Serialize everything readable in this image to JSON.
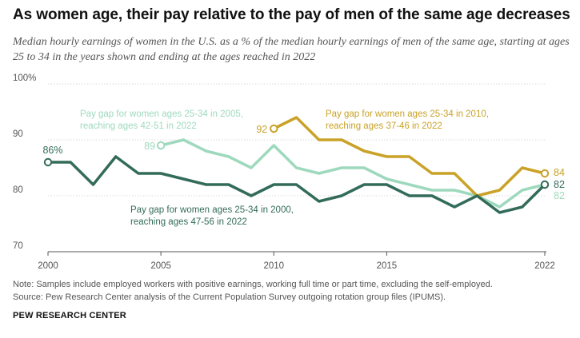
{
  "header": {
    "title": "As women age, their pay relative to the pay of men of the same age decreases",
    "subtitle": "Median hourly earnings of women in the U.S. as a % of the median hourly earnings of men of the same age, starting at ages 25 to 34 in the years shown and ending at the ages reached in 2022"
  },
  "footer": {
    "note": "Note: Samples include employed workers with positive earnings, working full time or part time, excluding the self-employed.",
    "source": "Source: Pew Research Center analysis of the Current Population Survey outgoing rotation group files (IPUMS).",
    "brand": "PEW RESEARCH CENTER"
  },
  "chart_data": {
    "type": "line",
    "xlim": [
      2000,
      2022
    ],
    "ylim": [
      70,
      100
    ],
    "x_ticks": [
      "2000",
      "2005",
      "2010",
      "2015",
      "2022"
    ],
    "y_ticks": [
      "100%",
      "90",
      "80",
      "70"
    ],
    "grid": "horizontal",
    "series": [
      {
        "id": "cohort2000",
        "label_line1": "Pay gap for women ages 25-34 in 2000,",
        "label_line2": "reaching ages 47-56 in 2022",
        "color": "#336b5a",
        "start_label": "86%",
        "end_label": "82",
        "x": [
          2000,
          2001,
          2002,
          2003,
          2004,
          2005,
          2006,
          2007,
          2008,
          2009,
          2010,
          2011,
          2012,
          2013,
          2014,
          2015,
          2016,
          2017,
          2018,
          2019,
          2020,
          2021,
          2022
        ],
        "values": [
          86,
          86,
          82,
          87,
          84,
          84,
          83,
          82,
          82,
          80,
          82,
          82,
          79,
          80,
          82,
          82,
          80,
          80,
          78,
          80,
          77,
          78,
          82
        ]
      },
      {
        "id": "cohort2005",
        "label_line1": "Pay gap for women ages 25-34 in 2005,",
        "label_line2": "reaching ages 42-51 in 2022",
        "color": "#9ed9be",
        "start_label": "89",
        "end_label": "82",
        "x": [
          2005,
          2006,
          2007,
          2008,
          2009,
          2010,
          2011,
          2012,
          2013,
          2014,
          2015,
          2016,
          2017,
          2018,
          2019,
          2020,
          2021,
          2022
        ],
        "values": [
          89,
          90,
          88,
          87,
          85,
          89,
          85,
          84,
          85,
          85,
          83,
          82,
          81,
          81,
          80,
          78,
          81,
          82
        ]
      },
      {
        "id": "cohort2010",
        "label_line1": "Pay gap for women ages 25-34 in 2010,",
        "label_line2": "reaching ages 37-46 in 2022",
        "color": "#c9a227",
        "start_label": "92",
        "end_label": "84",
        "x": [
          2010,
          2011,
          2012,
          2013,
          2014,
          2015,
          2016,
          2017,
          2018,
          2019,
          2020,
          2021,
          2022
        ],
        "values": [
          92,
          94,
          90,
          90,
          88,
          87,
          87,
          84,
          84,
          80,
          81,
          85,
          84
        ]
      }
    ]
  }
}
